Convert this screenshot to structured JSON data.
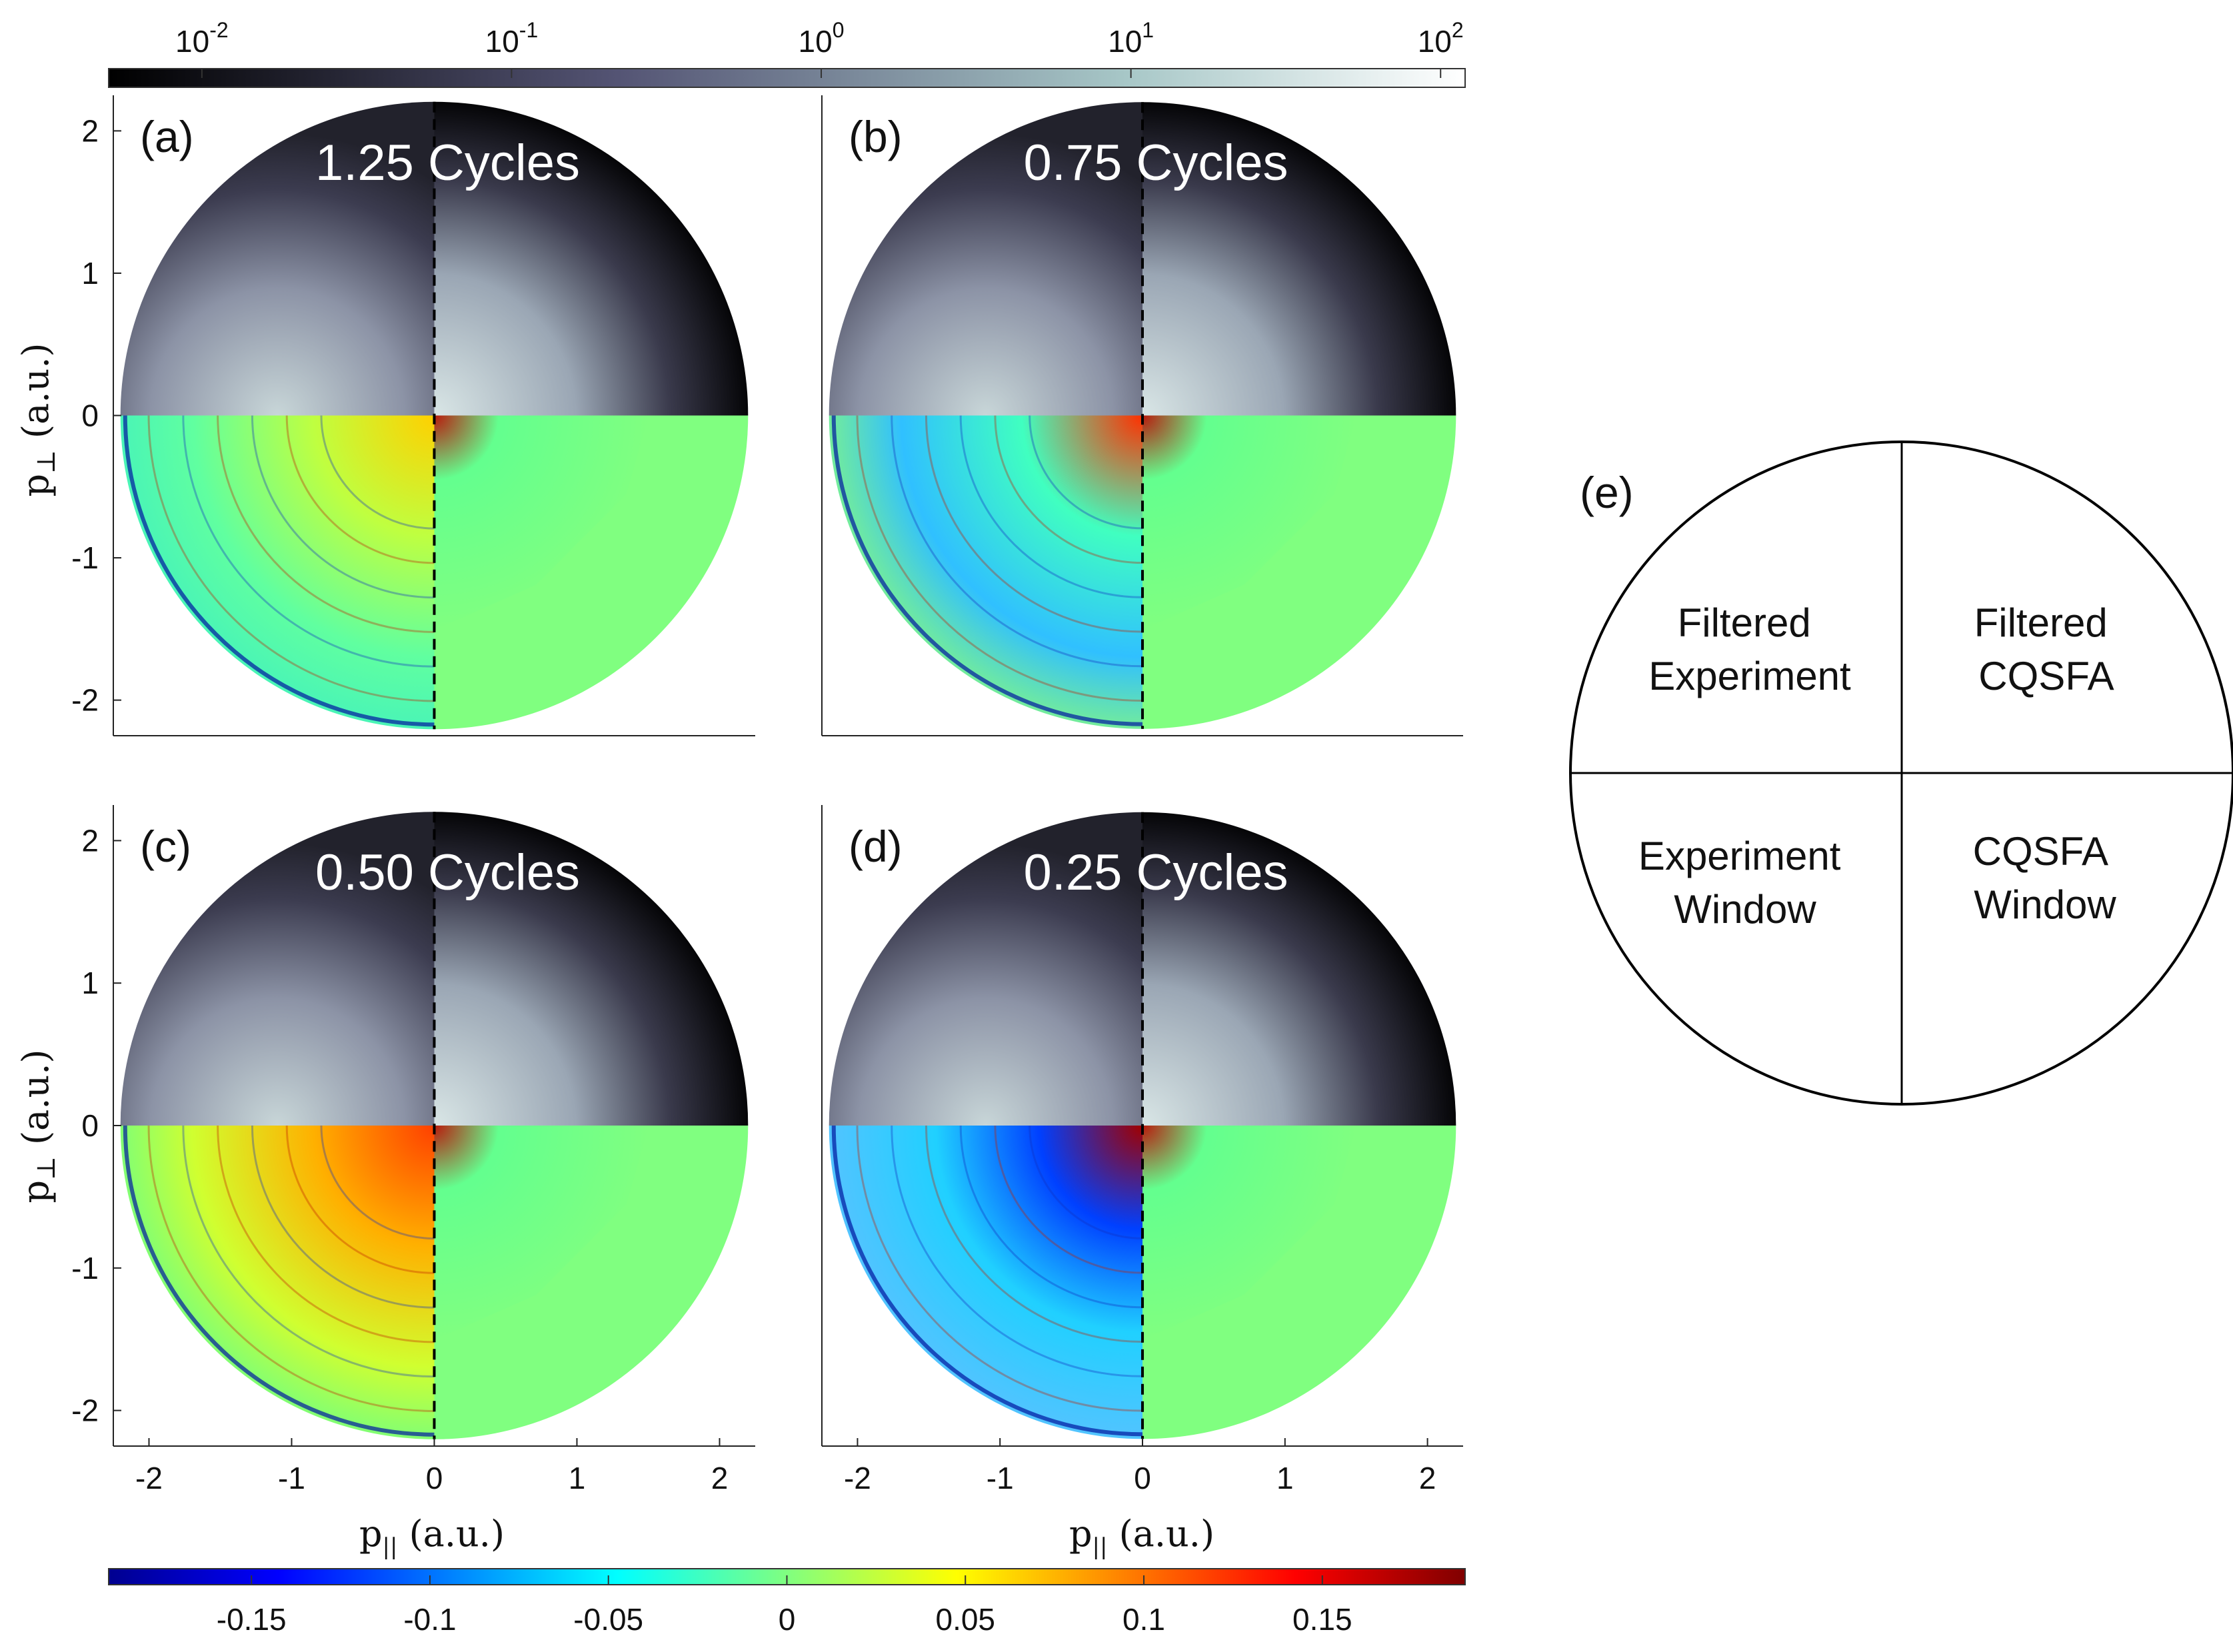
{
  "colorbar_top": {
    "tick_labels": [
      {
        "base": "10",
        "exp": "-2"
      },
      {
        "base": "10",
        "exp": "-1"
      },
      {
        "base": "10",
        "exp": "0"
      },
      {
        "base": "10",
        "exp": "1"
      },
      {
        "base": "10",
        "exp": "2"
      }
    ],
    "colormap": "bone",
    "scale": "log",
    "range": [
      0.005,
      120
    ]
  },
  "colorbar_bottom": {
    "tick_labels": [
      "-0.15",
      "-0.1",
      "-0.05",
      "0",
      "0.05",
      "0.1",
      "0.15"
    ],
    "tick_values": [
      -0.15,
      -0.1,
      -0.05,
      0,
      0.05,
      0.1,
      0.15
    ],
    "colormap": "jet",
    "range": [
      -0.19,
      0.19
    ]
  },
  "axes": {
    "ylabel": "p",
    "ylabel_sub": "⊥",
    "ylabel_unit": " (a.u.)",
    "xlabel": "p",
    "xlabel_sub": "||",
    "xlabel_unit": " (a.u.)",
    "y_tick_labels": [
      "2",
      "1",
      "0",
      "-1",
      "-2"
    ],
    "y_tick_values": [
      2,
      1,
      0,
      -1,
      -2
    ],
    "x_tick_labels": [
      "-2",
      "-1",
      "0",
      "1",
      "2"
    ],
    "x_tick_values": [
      -2,
      -1,
      0,
      1,
      2
    ],
    "range": [
      -2.25,
      2.25
    ],
    "circle_radius": 2.2
  },
  "panels": [
    {
      "tag": "(a)",
      "title": "1.25 Cycles"
    },
    {
      "tag": "(b)",
      "title": "0.75 Cycles"
    },
    {
      "tag": "(c)",
      "title": "0.50 Cycles"
    },
    {
      "tag": "(d)",
      "title": "0.25 Cycles"
    }
  ],
  "legend": {
    "tag": "(e)",
    "top_left": [
      "Filtered",
      "Experiment"
    ],
    "top_right": [
      "Filtered",
      "CQSFA"
    ],
    "bottom_left": [
      "Experiment",
      "Window"
    ],
    "bottom_right": [
      "CQSFA",
      "Window"
    ]
  },
  "colors": {
    "green_background": "#80ff80",
    "bone_dark": "#000000",
    "bone_light": "#ffffff"
  }
}
